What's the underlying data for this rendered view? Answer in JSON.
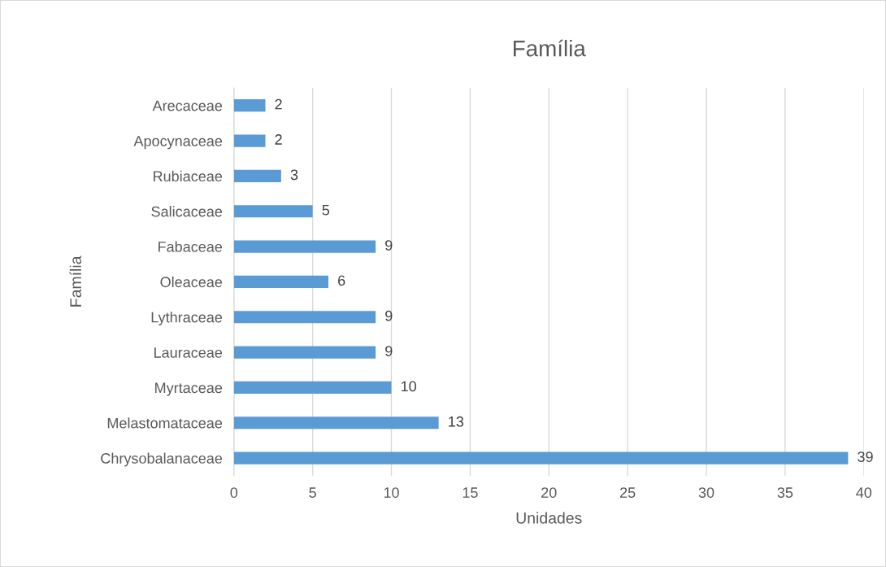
{
  "chart_data": {
    "type": "bar",
    "orientation": "horizontal",
    "title": "Família",
    "xlabel": "Unidades",
    "ylabel": "Família",
    "categories": [
      "Arecaceae",
      "Apocynaceae",
      "Rubiaceae",
      "Salicaceae",
      "Fabaceae",
      "Oleaceae",
      "Lythraceae",
      "Lauraceae",
      "Myrtaceae",
      "Melastomataceae",
      "Chrysobalanaceae"
    ],
    "values": [
      2,
      2,
      3,
      5,
      9,
      6,
      9,
      9,
      10,
      13,
      39
    ],
    "color": "#5b9bd5",
    "xlim": [
      0,
      40
    ],
    "xticks": [
      0,
      5,
      10,
      15,
      20,
      25,
      30,
      35,
      40
    ],
    "grid": "x",
    "data_labels": true,
    "legend": false
  }
}
